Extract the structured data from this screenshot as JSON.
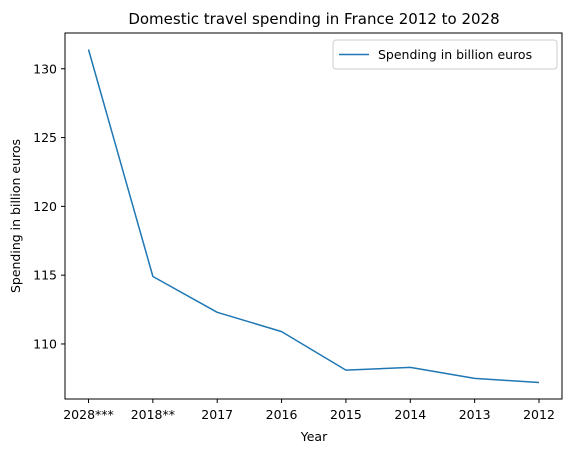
{
  "chart_data": {
    "type": "line",
    "title": "Domestic travel spending in France 2012 to 2028",
    "xlabel": "Year",
    "ylabel": "Spending in billion euros",
    "categories": [
      "2028***",
      "2018**",
      "2017",
      "2016",
      "2015",
      "2014",
      "2013",
      "2012"
    ],
    "series": [
      {
        "name": "Spending in billion euros",
        "color": "#1f77b4",
        "values": [
          131.4,
          114.9,
          112.3,
          110.9,
          108.1,
          108.3,
          107.5,
          107.2
        ]
      }
    ],
    "yticks": [
      110,
      115,
      120,
      125,
      130
    ],
    "ylim": [
      106.0,
      132.6
    ],
    "grid": false,
    "legend_position": "top-right"
  }
}
